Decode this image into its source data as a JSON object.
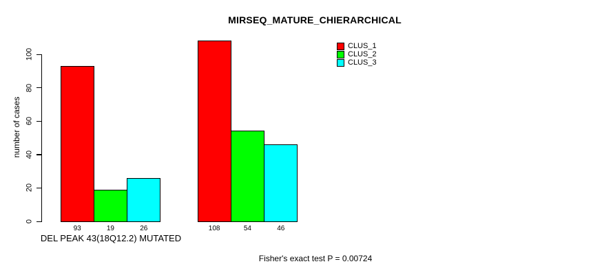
{
  "chart_data": {
    "type": "bar",
    "title": "MIRSEQ_MATURE_CHIERARCHICAL",
    "ylabel": "number of cases",
    "ylim": [
      0,
      108
    ],
    "yticks": [
      0,
      20,
      40,
      60,
      80,
      100
    ],
    "grid": false,
    "legend_position": "top-right",
    "series": [
      {
        "name": "CLUS_1",
        "color": "#FF0000"
      },
      {
        "name": "CLUS_2",
        "color": "#00FF00"
      },
      {
        "name": "CLUS_3",
        "color": "#00FFFF"
      }
    ],
    "groups": [
      {
        "label": "DEL PEAK 43(18Q12.2) MUTATED",
        "values": [
          93,
          19,
          26
        ]
      },
      {
        "label": "",
        "values": [
          108,
          54,
          46
        ]
      }
    ],
    "annotation": "Fisher's exact test P = 0.00724"
  }
}
